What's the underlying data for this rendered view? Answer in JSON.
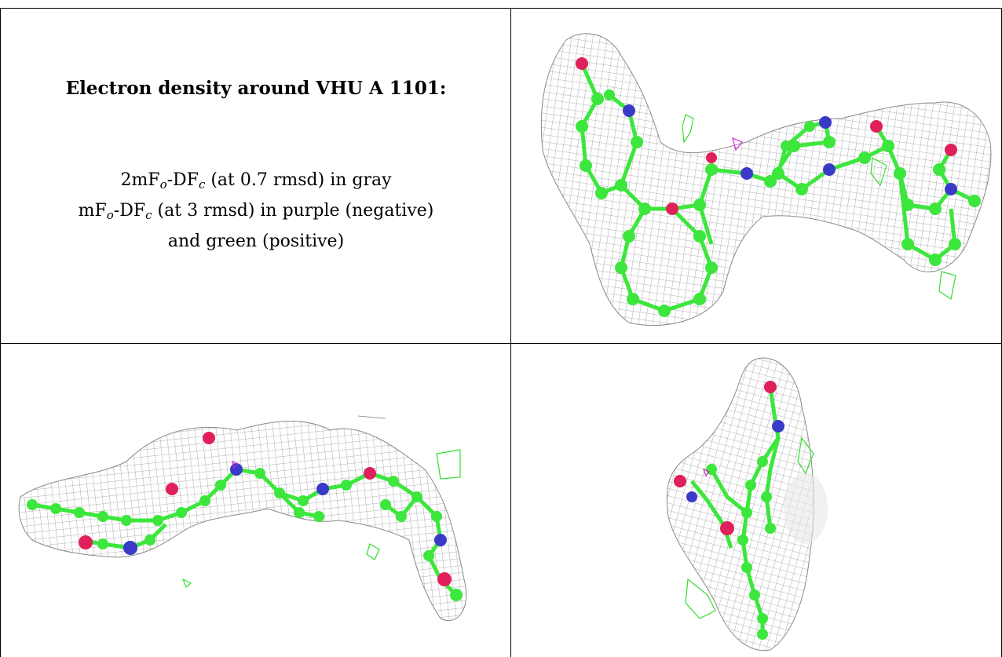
{
  "title": "Electron density around VHU A 1101:",
  "legend": {
    "line1_prefix": "2mF",
    "line1_sub1": "o",
    "line1_mid": "-DF",
    "line1_sub2": "c",
    "line1_suffix": " (at 0.7 rmsd) in gray",
    "line2_prefix": "mF",
    "line2_sub1": "o",
    "line2_mid": "-DF",
    "line2_sub2": "c",
    "line2_suffix": " (at 3 rmsd) in purple (negative)",
    "line3": "and green (positive)"
  },
  "colors": {
    "mesh_gray": "#9a9a9a",
    "carbon": "#3ce63c",
    "nitrogen": "#3a3ac8",
    "oxygen": "#e0205a",
    "positive_density": "#33dd33",
    "negative_density": "#cc22cc"
  }
}
